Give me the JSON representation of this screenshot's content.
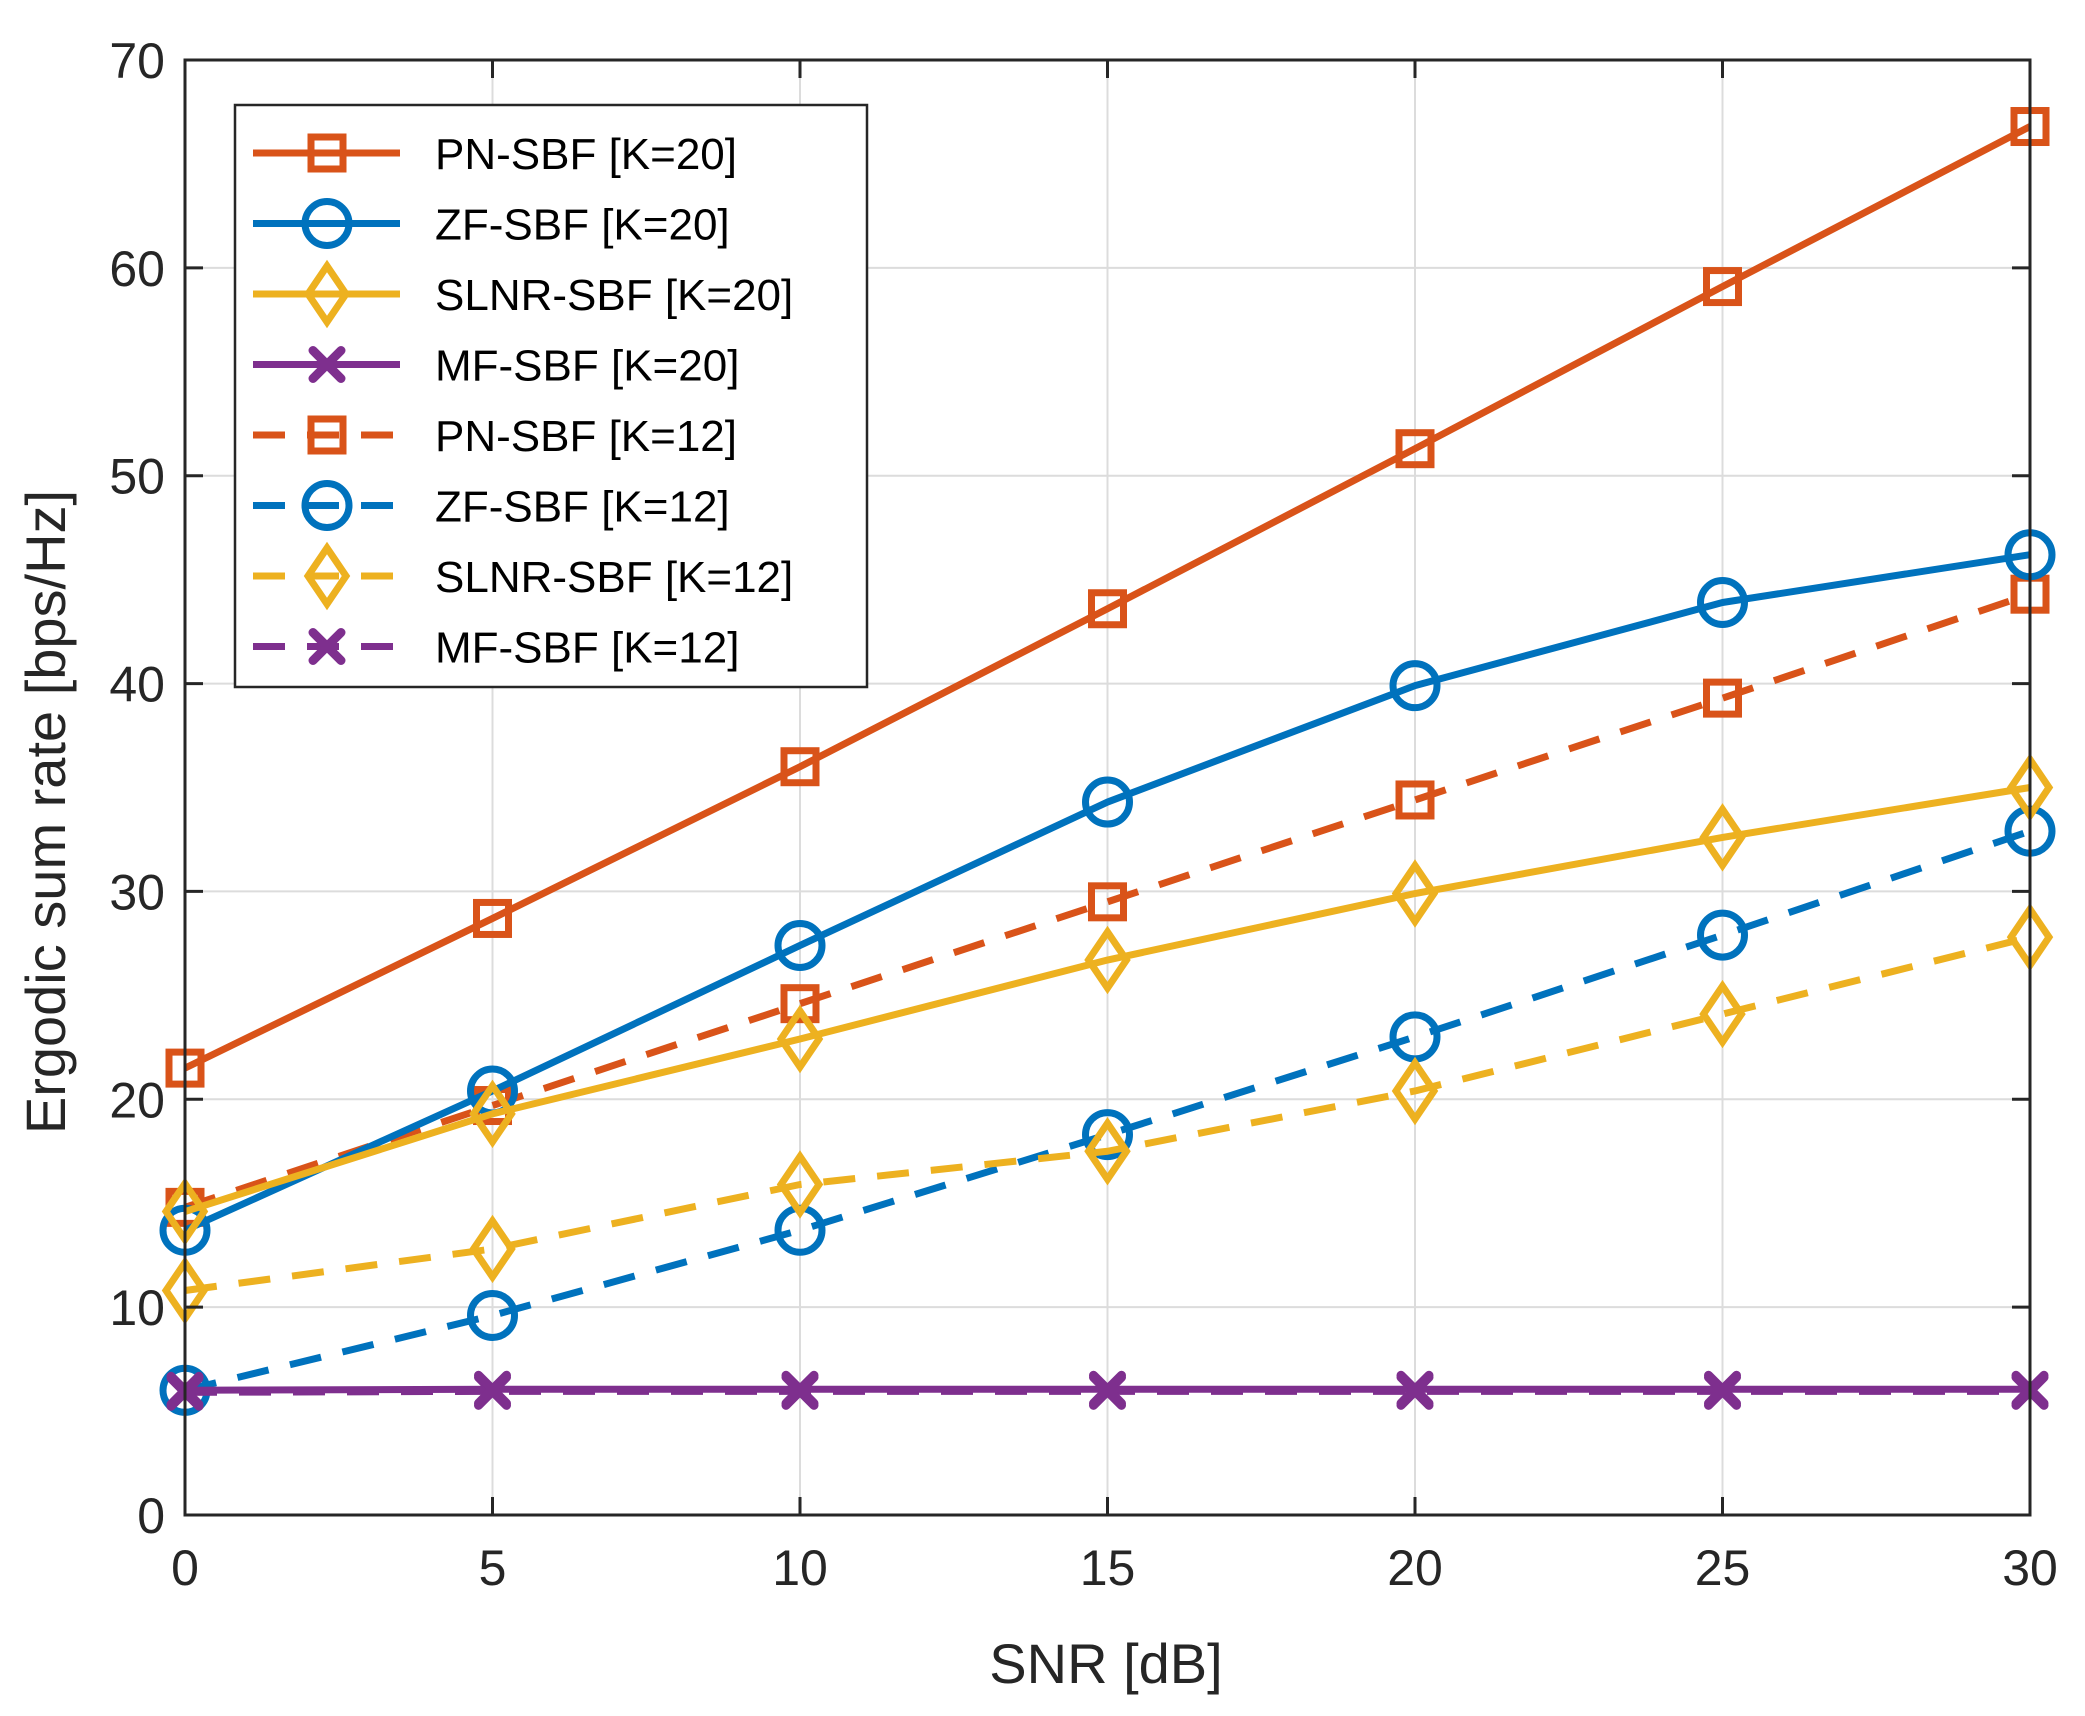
{
  "chart_data": {
    "type": "line",
    "title": "",
    "xlabel": "SNR [dB]",
    "ylabel": "Ergodic sum rate [bps/Hz]",
    "xlim": [
      0,
      30
    ],
    "ylim": [
      0,
      70
    ],
    "xticks": [
      0,
      5,
      10,
      15,
      20,
      25,
      30
    ],
    "yticks": [
      0,
      10,
      20,
      30,
      40,
      50,
      60,
      70
    ],
    "grid": true,
    "legend_position": "top-left",
    "x": [
      0,
      5,
      10,
      15,
      20,
      25,
      30
    ],
    "series": [
      {
        "name": "PN-SBF [K=20]",
        "color": "#D95319",
        "linestyle": "solid",
        "marker": "square",
        "values": [
          21.5,
          28.7,
          36.0,
          43.6,
          51.3,
          59.1,
          66.8
        ]
      },
      {
        "name": "ZF-SBF [K=20]",
        "color": "#0072BD",
        "linestyle": "solid",
        "marker": "circle",
        "values": [
          13.7,
          20.4,
          27.4,
          34.3,
          39.9,
          43.9,
          46.2
        ]
      },
      {
        "name": "SLNR-SBF [K=20]",
        "color": "#EDB120",
        "linestyle": "solid",
        "marker": "diamond",
        "values": [
          14.6,
          19.3,
          22.9,
          26.7,
          29.9,
          32.6,
          35.0
        ]
      },
      {
        "name": "MF-SBF [K=20]",
        "color": "#7E2F8E",
        "linestyle": "solid",
        "marker": "x",
        "values": [
          6.0,
          6.05,
          6.05,
          6.05,
          6.05,
          6.05,
          6.05
        ]
      },
      {
        "name": "PN-SBF [K=12]",
        "color": "#D95319",
        "linestyle": "dashed",
        "marker": "square",
        "values": [
          14.8,
          19.7,
          24.6,
          29.5,
          34.4,
          39.3,
          44.3
        ]
      },
      {
        "name": "ZF-SBF [K=12]",
        "color": "#0072BD",
        "linestyle": "dashed",
        "marker": "circle",
        "values": [
          6.0,
          9.6,
          13.7,
          18.3,
          23.0,
          27.9,
          32.9
        ]
      },
      {
        "name": "SLNR-SBF [K=12]",
        "color": "#EDB120",
        "linestyle": "dashed",
        "marker": "diamond",
        "values": [
          10.8,
          12.8,
          15.9,
          17.5,
          20.4,
          24.1,
          27.8
        ]
      },
      {
        "name": "MF-SBF [K=12]",
        "color": "#7E2F8E",
        "linestyle": "dashed",
        "marker": "x",
        "values": [
          5.9,
          5.95,
          5.95,
          5.95,
          5.95,
          5.95,
          5.95
        ]
      }
    ]
  }
}
